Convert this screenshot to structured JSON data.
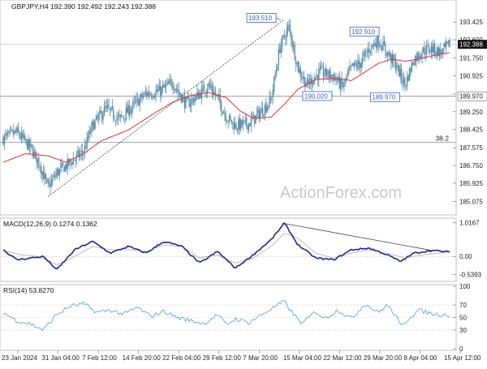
{
  "chart_data": [
    {
      "type": "candlestick",
      "panel": "price",
      "header": "GBPJPY,H4  192.390 192.492 192.243 192.388",
      "watermark": "ActionForex.com",
      "ylim": [
        184.6,
        194.3
      ],
      "yticks": [
        "193.425",
        "192.600",
        "191.750",
        "190.925",
        "190.075",
        "189.250",
        "188.425",
        "187.575",
        "186.750",
        "185.925",
        "185.075"
      ],
      "ytick_values": [
        193.425,
        192.6,
        191.75,
        190.925,
        190.075,
        189.25,
        188.425,
        187.575,
        186.75,
        185.925,
        185.075
      ],
      "current_price": "192.388",
      "current_price_value": 192.388,
      "level_labels": {
        "h1": "189.970",
        "h2": "38.2"
      },
      "level_values": {
        "h1": 189.97,
        "h2": 187.83
      },
      "callouts": [
        {
          "text": "193.510",
          "x": 0.622,
          "y": 193.51
        },
        {
          "text": "192.910",
          "x": 0.842,
          "y": 192.91
        },
        {
          "text": "190.020",
          "x": 0.738,
          "y": 190.02
        },
        {
          "text": "189.970",
          "x": 0.888,
          "y": 189.97
        }
      ],
      "trendline": {
        "start": [
          0.1,
          185.3
        ],
        "end": [
          0.627,
          193.51
        ]
      },
      "close_path": [
        [
          0.0,
          188.0
        ],
        [
          0.03,
          188.3
        ],
        [
          0.06,
          187.6
        ],
        [
          0.08,
          186.9
        ],
        [
          0.1,
          185.7
        ],
        [
          0.12,
          186.4
        ],
        [
          0.15,
          186.9
        ],
        [
          0.18,
          187.4
        ],
        [
          0.2,
          188.6
        ],
        [
          0.23,
          189.4
        ],
        [
          0.26,
          188.9
        ],
        [
          0.29,
          189.5
        ],
        [
          0.32,
          190.1
        ],
        [
          0.35,
          190.2
        ],
        [
          0.38,
          190.6
        ],
        [
          0.41,
          189.6
        ],
        [
          0.43,
          189.9
        ],
        [
          0.46,
          190.5
        ],
        [
          0.48,
          189.9
        ],
        [
          0.5,
          189.0
        ],
        [
          0.52,
          188.6
        ],
        [
          0.55,
          188.7
        ],
        [
          0.58,
          189.3
        ],
        [
          0.6,
          189.8
        ],
        [
          0.62,
          192.3
        ],
        [
          0.64,
          193.2
        ],
        [
          0.66,
          191.3
        ],
        [
          0.68,
          190.5
        ],
        [
          0.71,
          191.1
        ],
        [
          0.74,
          190.9
        ],
        [
          0.76,
          190.4
        ],
        [
          0.78,
          191.3
        ],
        [
          0.8,
          191.5
        ],
        [
          0.82,
          192.2
        ],
        [
          0.84,
          192.6
        ],
        [
          0.86,
          192.0
        ],
        [
          0.88,
          191.4
        ],
        [
          0.9,
          190.5
        ],
        [
          0.92,
          191.7
        ],
        [
          0.94,
          192.1
        ],
        [
          0.96,
          192.2
        ],
        [
          0.98,
          192.0
        ],
        [
          1.0,
          192.39
        ]
      ],
      "ma_path": [
        [
          0.0,
          186.9
        ],
        [
          0.05,
          187.3
        ],
        [
          0.1,
          187.2
        ],
        [
          0.14,
          186.9
        ],
        [
          0.18,
          187.3
        ],
        [
          0.22,
          187.9
        ],
        [
          0.28,
          188.4
        ],
        [
          0.34,
          189.2
        ],
        [
          0.38,
          189.7
        ],
        [
          0.42,
          190.0
        ],
        [
          0.46,
          190.15
        ],
        [
          0.5,
          189.9
        ],
        [
          0.53,
          189.3
        ],
        [
          0.56,
          188.95
        ],
        [
          0.6,
          189.0
        ],
        [
          0.63,
          189.6
        ],
        [
          0.66,
          190.3
        ],
        [
          0.7,
          190.75
        ],
        [
          0.74,
          190.8
        ],
        [
          0.78,
          190.7
        ],
        [
          0.81,
          191.1
        ],
        [
          0.84,
          191.5
        ],
        [
          0.87,
          191.7
        ],
        [
          0.9,
          191.6
        ],
        [
          0.93,
          191.7
        ],
        [
          0.96,
          191.85
        ],
        [
          1.0,
          192.0
        ]
      ]
    },
    {
      "type": "line",
      "panel": "macd",
      "header": "MACD(12,26,9) 0.1274 0.1362",
      "ylim": [
        -0.7,
        1.1
      ],
      "yticks": [
        "1.0167",
        "0.00",
        "-0.5393"
      ],
      "ytick_values": [
        1.0167,
        0.0,
        -0.5393
      ],
      "macd_path": [
        [
          0.0,
          0.2
        ],
        [
          0.03,
          -0.1
        ],
        [
          0.06,
          -0.05
        ],
        [
          0.09,
          0.0
        ],
        [
          0.12,
          -0.4
        ],
        [
          0.16,
          0.2
        ],
        [
          0.2,
          0.45
        ],
        [
          0.24,
          0.1
        ],
        [
          0.28,
          0.3
        ],
        [
          0.32,
          0.1
        ],
        [
          0.36,
          0.45
        ],
        [
          0.4,
          0.3
        ],
        [
          0.44,
          -0.2
        ],
        [
          0.48,
          0.15
        ],
        [
          0.52,
          -0.35
        ],
        [
          0.56,
          0.05
        ],
        [
          0.6,
          0.5
        ],
        [
          0.63,
          1.0
        ],
        [
          0.66,
          0.35
        ],
        [
          0.7,
          -0.05
        ],
        [
          0.74,
          -0.1
        ],
        [
          0.78,
          0.2
        ],
        [
          0.82,
          0.25
        ],
        [
          0.86,
          0.05
        ],
        [
          0.89,
          -0.15
        ],
        [
          0.92,
          0.1
        ],
        [
          0.96,
          0.18
        ],
        [
          1.0,
          0.13
        ]
      ],
      "signal_path": [
        [
          0.0,
          0.18
        ],
        [
          0.04,
          0.05
        ],
        [
          0.08,
          0.0
        ],
        [
          0.12,
          -0.25
        ],
        [
          0.16,
          0.0
        ],
        [
          0.2,
          0.3
        ],
        [
          0.24,
          0.2
        ],
        [
          0.28,
          0.2
        ],
        [
          0.32,
          0.15
        ],
        [
          0.36,
          0.35
        ],
        [
          0.4,
          0.3
        ],
        [
          0.44,
          -0.05
        ],
        [
          0.48,
          0.05
        ],
        [
          0.52,
          -0.2
        ],
        [
          0.56,
          -0.05
        ],
        [
          0.6,
          0.3
        ],
        [
          0.63,
          0.7
        ],
        [
          0.66,
          0.55
        ],
        [
          0.7,
          0.1
        ],
        [
          0.74,
          -0.05
        ],
        [
          0.78,
          0.1
        ],
        [
          0.82,
          0.2
        ],
        [
          0.86,
          0.1
        ],
        [
          0.9,
          -0.05
        ],
        [
          0.94,
          0.05
        ],
        [
          1.0,
          0.136
        ]
      ],
      "trendline": {
        "start": [
          0.625,
          1.0
        ],
        "end": [
          0.96,
          0.18
        ]
      }
    },
    {
      "type": "line",
      "panel": "rsi",
      "header": "RSI(14) 53.8270",
      "ylim": [
        0,
        100
      ],
      "yticks": [
        "100",
        "70",
        "50",
        "30",
        "0"
      ],
      "ytick_values": [
        100,
        70,
        50,
        30,
        0
      ],
      "rsi_path": [
        [
          0.0,
          58
        ],
        [
          0.03,
          45
        ],
        [
          0.06,
          40
        ],
        [
          0.09,
          30
        ],
        [
          0.12,
          55
        ],
        [
          0.15,
          68
        ],
        [
          0.18,
          72
        ],
        [
          0.21,
          58
        ],
        [
          0.24,
          62
        ],
        [
          0.27,
          55
        ],
        [
          0.3,
          66
        ],
        [
          0.33,
          52
        ],
        [
          0.36,
          60
        ],
        [
          0.39,
          50
        ],
        [
          0.42,
          45
        ],
        [
          0.45,
          40
        ],
        [
          0.48,
          55
        ],
        [
          0.5,
          38
        ],
        [
          0.52,
          48
        ],
        [
          0.55,
          42
        ],
        [
          0.58,
          55
        ],
        [
          0.61,
          68
        ],
        [
          0.63,
          76
        ],
        [
          0.65,
          55
        ],
        [
          0.67,
          40
        ],
        [
          0.7,
          60
        ],
        [
          0.72,
          48
        ],
        [
          0.75,
          62
        ],
        [
          0.78,
          48
        ],
        [
          0.81,
          72
        ],
        [
          0.84,
          58
        ],
        [
          0.86,
          70
        ],
        [
          0.88,
          52
        ],
        [
          0.89,
          35
        ],
        [
          0.91,
          50
        ],
        [
          0.93,
          62
        ],
        [
          0.96,
          56
        ],
        [
          1.0,
          53.8
        ]
      ]
    }
  ],
  "x_axis_labels": [
    "23 Jan 2024",
    "31 Jan 04:00",
    "7 Feb 12:00",
    "14 Feb 20:00",
    "22 Feb 04:00",
    "29 Feb 12:00",
    "7 Mar 20:00",
    "15 Mar 04:00",
    "22 Mar 12:00",
    "29 Mar 20:00",
    "8 Apr 04:00",
    "15 Apr 12:00"
  ],
  "colors": {
    "candle": "#5f8fa8",
    "ma": "#e03030",
    "macd": "#1f2a80",
    "signal": "#bbbbbb",
    "rsi": "#4f9bd6",
    "callout": "#3a5fc8",
    "trendline": "#444444",
    "grid": "#dddddd",
    "level": "#777777"
  }
}
